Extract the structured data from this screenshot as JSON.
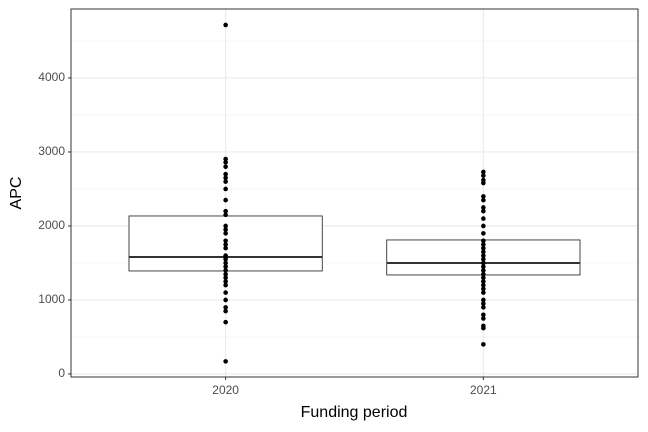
{
  "chart_data": {
    "type": "box",
    "x_label": "Funding period",
    "y_label": "APC",
    "categories": [
      "2020",
      "2021"
    ],
    "q1": [
      1392,
      1338
    ],
    "median": [
      1581,
      1500
    ],
    "q3": [
      2135,
      1811
    ],
    "points": [
      [
        4716,
        2905,
        2860,
        2800,
        2700,
        2650,
        2600,
        2500,
        2350,
        2200,
        2150,
        2000,
        1950,
        1900,
        1800,
        1750,
        1700,
        1600,
        1580,
        1550,
        1500,
        1450,
        1400,
        1350,
        1300,
        1250,
        1200,
        1100,
        1000,
        900,
        850,
        700,
        170
      ],
      [
        2730,
        2680,
        2620,
        2580,
        2400,
        2350,
        2250,
        2200,
        2100,
        2000,
        1900,
        1800,
        1750,
        1700,
        1650,
        1600,
        1550,
        1500,
        1450,
        1400,
        1350,
        1300,
        1250,
        1200,
        1150,
        1100,
        1000,
        950,
        900,
        800,
        750,
        650,
        620,
        400
      ]
    ],
    "ylim": [
      -41,
      4932
    ],
    "yticks": [
      0,
      1000,
      2000,
      3000,
      4000
    ],
    "yminor": [
      500,
      1500,
      2500,
      3500,
      4500
    ],
    "grid": true,
    "box_color": "#333333",
    "point_color": "#000000"
  }
}
